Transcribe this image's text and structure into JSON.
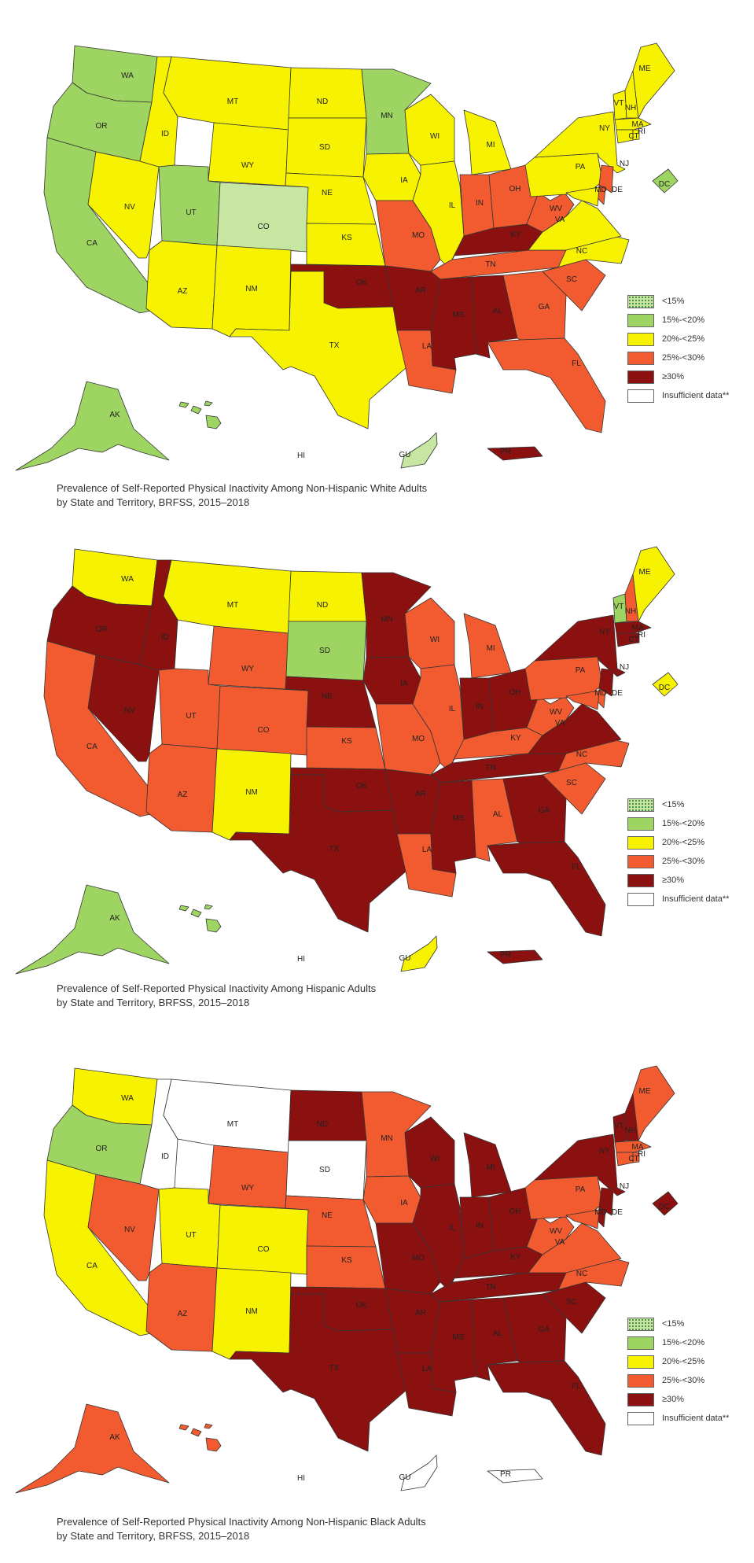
{
  "colors": {
    "lt15": "#c7e6a2",
    "15to20": "#9ed462",
    "20to25": "#f7f300",
    "25to30": "#f25b30",
    "ge30": "#8b1111",
    "insufficient": "#ffffff"
  },
  "legend": [
    {
      "label": "<15%",
      "category": "lt15",
      "pattern": "dots"
    },
    {
      "label": "15%-<20%",
      "category": "15to20"
    },
    {
      "label": "20%-<25%",
      "category": "20to25"
    },
    {
      "label": "25%-<30%",
      "category": "25to30"
    },
    {
      "label": "≥30%",
      "category": "ge30"
    },
    {
      "label": "Insufficient data**",
      "category": "insufficient"
    }
  ],
  "maps": [
    {
      "caption_line1": "Prevalence of Self-Reported Physical Inactivity Among Non-Hispanic White Adults",
      "caption_line2": "by State and Territory, BRFSS, 2015–2018",
      "states": {
        "WA": "15to20",
        "OR": "15to20",
        "CA": "15to20",
        "NV": "20to25",
        "ID": "20to25",
        "MT": "20to25",
        "WY": "20to25",
        "UT": "15to20",
        "CO": "lt15",
        "AZ": "20to25",
        "NM": "20to25",
        "ND": "20to25",
        "SD": "20to25",
        "NE": "20to25",
        "KS": "20to25",
        "OK": "ge30",
        "TX": "20to25",
        "MN": "15to20",
        "IA": "20to25",
        "MO": "25to30",
        "AR": "ge30",
        "LA": "25to30",
        "WI": "20to25",
        "IL": "20to25",
        "MI": "20to25",
        "IN": "25to30",
        "OH": "25to30",
        "KY": "ge30",
        "TN": "25to30",
        "MS": "ge30",
        "AL": "ge30",
        "GA": "25to30",
        "FL": "25to30",
        "SC": "25to30",
        "NC": "20to25",
        "VA": "20to25",
        "WV": "25to30",
        "PA": "20to25",
        "NY": "20to25",
        "VT": "20to25",
        "NH": "20to25",
        "ME": "20to25",
        "MA": "20to25",
        "CT": "20to25",
        "RI": "20to25",
        "NJ": "25to30",
        "DE": "25to30",
        "MD": "20to25",
        "DC": "15to20",
        "AK": "15to20",
        "HI": "15to20",
        "GU": "lt15",
        "PR": "ge30"
      }
    },
    {
      "caption_line1": "Prevalence of Self-Reported Physical Inactivity Among Hispanic Adults",
      "caption_line2": "by State and Territory, BRFSS, 2015–2018",
      "states": {
        "WA": "20to25",
        "OR": "ge30",
        "CA": "25to30",
        "NV": "ge30",
        "ID": "ge30",
        "MT": "20to25",
        "WY": "25to30",
        "UT": "25to30",
        "CO": "25to30",
        "AZ": "25to30",
        "NM": "20to25",
        "ND": "20to25",
        "SD": "15to20",
        "NE": "ge30",
        "KS": "25to30",
        "OK": "ge30",
        "TX": "ge30",
        "MN": "ge30",
        "IA": "ge30",
        "MO": "25to30",
        "AR": "ge30",
        "LA": "25to30",
        "WI": "25to30",
        "IL": "25to30",
        "MI": "25to30",
        "IN": "ge30",
        "OH": "ge30",
        "KY": "25to30",
        "TN": "ge30",
        "MS": "ge30",
        "AL": "25to30",
        "GA": "ge30",
        "FL": "ge30",
        "SC": "25to30",
        "NC": "25to30",
        "VA": "ge30",
        "WV": "25to30",
        "PA": "25to30",
        "NY": "ge30",
        "VT": "15to20",
        "NH": "25to30",
        "ME": "20to25",
        "MA": "ge30",
        "CT": "ge30",
        "RI": "ge30",
        "NJ": "ge30",
        "DE": "25to30",
        "MD": "25to30",
        "DC": "20to25",
        "AK": "15to20",
        "HI": "15to20",
        "GU": "20to25",
        "PR": "ge30"
      }
    },
    {
      "caption_line1": "Prevalence of Self-Reported Physical Inactivity Among Non-Hispanic Black Adults",
      "caption_line2": "by State and Territory, BRFSS, 2015–2018",
      "states": {
        "WA": "20to25",
        "OR": "15to20",
        "CA": "20to25",
        "NV": "25to30",
        "ID": "insufficient",
        "MT": "insufficient",
        "WY": "25to30",
        "UT": "20to25",
        "CO": "20to25",
        "AZ": "25to30",
        "NM": "20to25",
        "ND": "ge30",
        "SD": "insufficient",
        "NE": "25to30",
        "KS": "25to30",
        "OK": "ge30",
        "TX": "ge30",
        "MN": "25to30",
        "IA": "25to30",
        "MO": "ge30",
        "AR": "ge30",
        "LA": "ge30",
        "WI": "ge30",
        "IL": "ge30",
        "MI": "ge30",
        "IN": "ge30",
        "OH": "ge30",
        "KY": "ge30",
        "TN": "ge30",
        "MS": "ge30",
        "AL": "ge30",
        "GA": "ge30",
        "FL": "ge30",
        "SC": "ge30",
        "NC": "25to30",
        "VA": "25to30",
        "WV": "25to30",
        "PA": "25to30",
        "NY": "ge30",
        "VT": "ge30",
        "NH": "ge30",
        "ME": "25to30",
        "MA": "25to30",
        "CT": "25to30",
        "RI": "25to30",
        "NJ": "ge30",
        "DE": "ge30",
        "MD": "25to30",
        "DC": "ge30",
        "AK": "25to30",
        "HI": "25to30",
        "GU": "insufficient",
        "PR": "insufficient"
      }
    }
  ]
}
